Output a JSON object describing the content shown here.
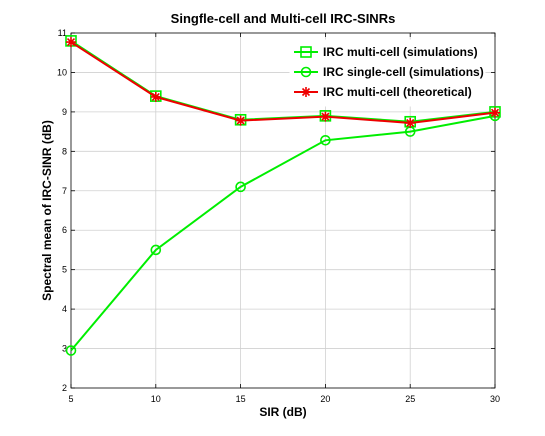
{
  "chart_data": {
    "type": "line",
    "title": "Singfle-cell and Multi-cell IRC-SINRs",
    "xlabel": "SIR (dB)",
    "ylabel": "Spectral mean of  IRC-SINR (dB)",
    "x": [
      5,
      10,
      15,
      20,
      25,
      30
    ],
    "xlim": [
      5,
      30
    ],
    "ylim": [
      2,
      11
    ],
    "xticks": [
      "5",
      "10",
      "15",
      "20",
      "25",
      "30"
    ],
    "yticks": [
      "2",
      "3",
      "4",
      "5",
      "6",
      "7",
      "8",
      "9",
      "10",
      "11"
    ],
    "grid": true,
    "legend_position": "top-right",
    "series": [
      {
        "name": "IRC multi-cell (simulations)",
        "values": [
          10.8,
          9.4,
          8.8,
          8.9,
          8.75,
          9.0
        ],
        "color": "#00ee00",
        "marker": "square"
      },
      {
        "name": "IRC single-cell (simulations)",
        "values": [
          2.95,
          5.5,
          7.1,
          8.28,
          8.5,
          8.9
        ],
        "color": "#00ee00",
        "marker": "circle"
      },
      {
        "name": "IRC multi-cell (theoretical)",
        "values": [
          10.77,
          9.38,
          8.78,
          8.88,
          8.72,
          8.98
        ],
        "color": "#ee0000",
        "marker": "star"
      }
    ]
  }
}
